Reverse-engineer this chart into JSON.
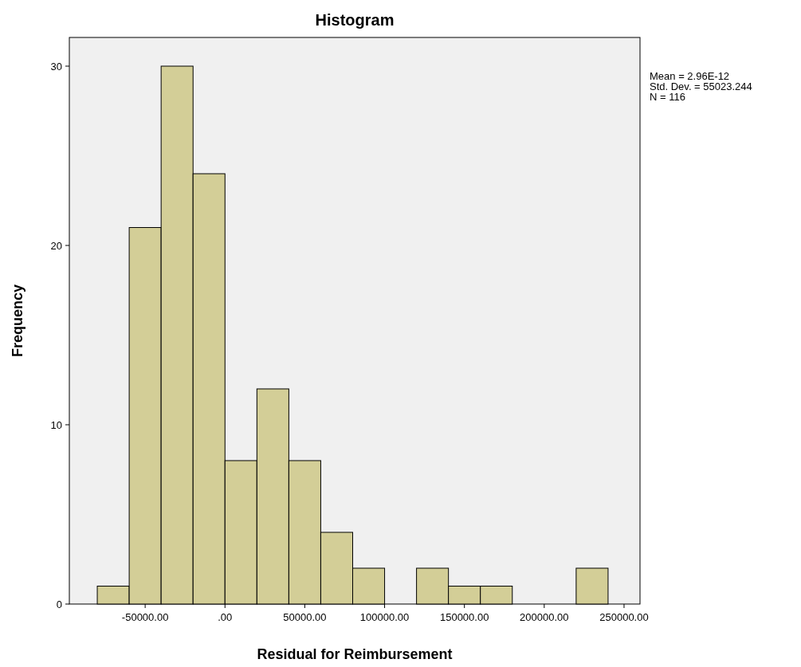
{
  "chart_data": {
    "type": "histogram",
    "title": "Histogram",
    "xlabel": "Residual for Reimbursement",
    "ylabel": "Frequency",
    "bins": [
      -80000,
      -60000,
      -40000,
      -20000,
      0,
      20000,
      40000,
      60000,
      80000,
      100000,
      120000,
      140000,
      160000,
      180000,
      200000,
      220000,
      240000
    ],
    "values": [
      1,
      21,
      30,
      24,
      8,
      12,
      8,
      4,
      2,
      0,
      2,
      1,
      1,
      0,
      0,
      2
    ],
    "color": "#d3ce97",
    "xlim": [
      -97500,
      260000
    ],
    "xticks": [
      {
        "value": -50000,
        "label": "-50000.00"
      },
      {
        "value": 0,
        "label": ".00"
      },
      {
        "value": 50000,
        "label": "50000.00"
      },
      {
        "value": 100000,
        "label": "100000.00"
      },
      {
        "value": 150000,
        "label": "150000.00"
      },
      {
        "value": 200000,
        "label": "200000.00"
      },
      {
        "value": 250000,
        "label": "250000.00"
      }
    ],
    "ylim": [
      0,
      31.6
    ],
    "yticks": [
      0,
      10,
      20,
      30
    ],
    "grid": false,
    "annotations": [
      "Mean = 2.96E-12",
      "Std. Dev. = 55023.244",
      "N = 116"
    ]
  }
}
